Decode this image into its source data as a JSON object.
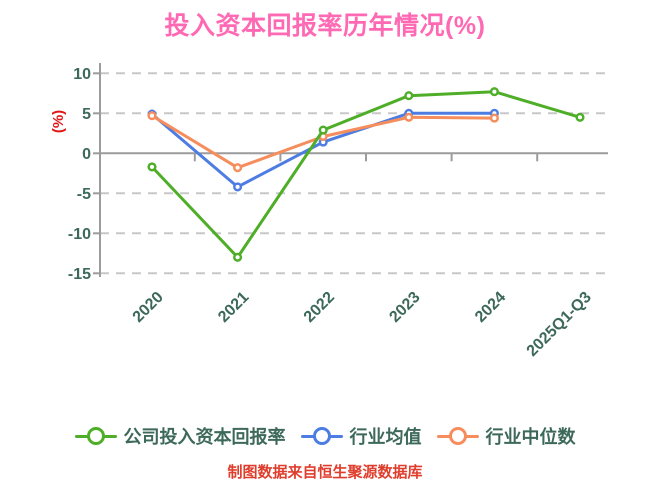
{
  "title": "投入资本回报率历年情况(%)",
  "y_axis_label": "(%)",
  "footer": "制图数据来自恒生聚源数据库",
  "colors": {
    "title": "#ff69b4",
    "axis_label": "#e01616",
    "tick_text": "#3d695a",
    "legend_text": "#3d695a",
    "footer": "#e03e2d",
    "grid": "#c8c8c8",
    "axis": "#9c9c9c",
    "marker_fill": "#ffffff",
    "series_company": "#4fae28",
    "series_industry_mean": "#4d7ce2",
    "series_industry_median": "#f68d5c"
  },
  "chart_data": {
    "type": "line",
    "title": "投入资本回报率历年情况(%)",
    "ylabel": "(%)",
    "categories": [
      "2020",
      "2021",
      "2022",
      "2023",
      "2024",
      "2025Q1-Q3"
    ],
    "series": [
      {
        "name": "公司投入资本回报率",
        "color": "#4fae28",
        "values": [
          -1.7,
          -13.0,
          2.9,
          7.2,
          7.7,
          4.5
        ]
      },
      {
        "name": "行业均值",
        "color": "#4d7ce2",
        "values": [
          4.9,
          -4.2,
          1.4,
          5.0,
          5.0,
          null
        ]
      },
      {
        "name": "行业中位数",
        "color": "#f68d5c",
        "values": [
          4.7,
          -1.8,
          2.1,
          4.5,
          4.4,
          null
        ]
      }
    ],
    "yticks": [
      10,
      5,
      0,
      -5,
      -10,
      -15
    ],
    "ylim": [
      -15,
      10
    ],
    "grid": "horizontal-dashed",
    "x_axis_position": "zero",
    "x_tick_rotation_deg": 45,
    "legend_position": "bottom",
    "marker": "circle-white-fill"
  }
}
